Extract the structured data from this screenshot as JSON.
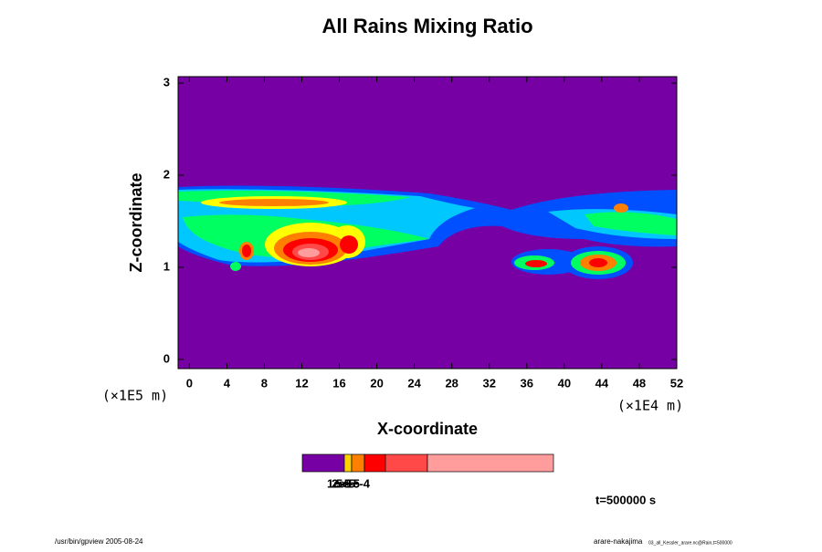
{
  "chart_data": {
    "type": "contour",
    "title": "All Rains Mixing Ratio",
    "xlabel": "X-coordinate",
    "ylabel": "Z-coordinate",
    "xunit": "(×1E4 m)",
    "yunit": "(×1E5 m)",
    "xlim": [
      -1.2,
      52
    ],
    "xticks": [
      0,
      4,
      8,
      12,
      16,
      20,
      24,
      28,
      32,
      36,
      40,
      44,
      48,
      52
    ],
    "ylim": [
      -0.1,
      3.07
    ],
    "yticks": [
      0,
      1,
      2,
      3
    ],
    "colorbar": {
      "colors": [
        "#7700a4",
        "#ffd000",
        "#ff8000",
        "#ff0000",
        "#ff4848",
        "#ff9c9c"
      ],
      "labels": [
        "1e-5",
        "2e-5",
        "5e-5",
        "1e-4"
      ]
    },
    "time_label": "t=500000 s",
    "footer_left": "/usr/bin/gpview 2005-08-24",
    "footer_right": "arare-nakajima",
    "footer_right_small": "03_all_Kessler_arare.nc@Rain,t=500000"
  }
}
